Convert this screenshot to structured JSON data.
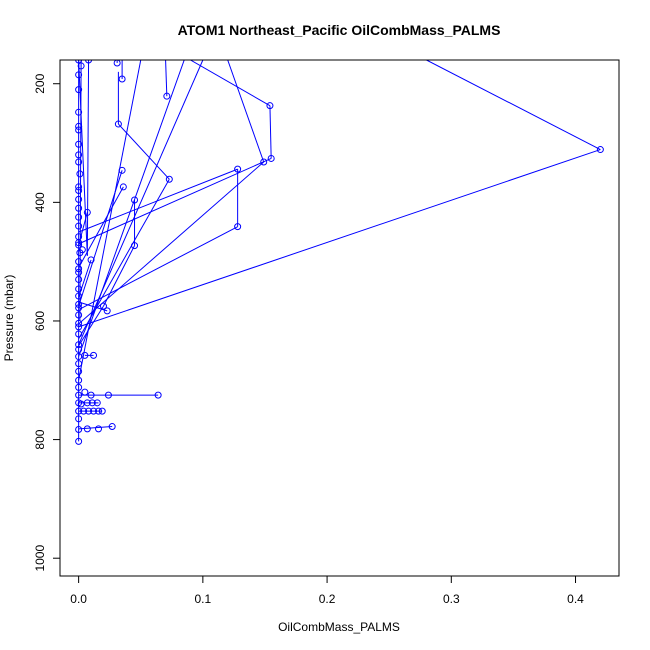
{
  "chart_data": {
    "type": "scatter",
    "title": "ATOM1 Northeast_Pacific OilCombMass_PALMS",
    "xlabel": "OilCombMass_PALMS",
    "ylabel": "Pressure (mbar)",
    "xlim": [
      -0.015,
      0.435
    ],
    "ylim": [
      1030,
      160
    ],
    "y_reversed": true,
    "xticks": [
      0.0,
      0.1,
      0.2,
      0.3,
      0.4
    ],
    "xtick_labels": [
      "0.0",
      "0.1",
      "0.2",
      "0.3",
      "0.4"
    ],
    "yticks": [
      200,
      400,
      600,
      800,
      1000
    ],
    "ytick_labels": [
      "200",
      "400",
      "600",
      "800",
      "1000"
    ],
    "color": "#0000ff",
    "grid": false,
    "points": [
      [
        0.0,
        160
      ],
      [
        0.002,
        170
      ],
      [
        0.008,
        160
      ],
      [
        0.0,
        185
      ],
      [
        0.0,
        210
      ],
      [
        0.0,
        248
      ],
      [
        0.0,
        272
      ],
      [
        0.0,
        278
      ],
      [
        0.0,
        302
      ],
      [
        0.0,
        320
      ],
      [
        0.0,
        332
      ],
      [
        0.001,
        352
      ],
      [
        0.0,
        374
      ],
      [
        0.0,
        380
      ],
      [
        0.0,
        395
      ],
      [
        0.0,
        410
      ],
      [
        0.0,
        425
      ],
      [
        0.0,
        440
      ],
      [
        0.0,
        458
      ],
      [
        0.0,
        468
      ],
      [
        0.0,
        472
      ],
      [
        0.003,
        480
      ],
      [
        0.001,
        485
      ],
      [
        0.0,
        500
      ],
      [
        0.0,
        512
      ],
      [
        0.0,
        518
      ],
      [
        0.0,
        530
      ],
      [
        0.0,
        546
      ],
      [
        0.0,
        558
      ],
      [
        0.0,
        572
      ],
      [
        0.0,
        578
      ],
      [
        0.0,
        590
      ],
      [
        0.0,
        604
      ],
      [
        0.0,
        610
      ],
      [
        0.0,
        622
      ],
      [
        0.0,
        640
      ],
      [
        0.0,
        648
      ],
      [
        0.0,
        660
      ],
      [
        0.0,
        672
      ],
      [
        0.0,
        685
      ],
      [
        0.0,
        700
      ],
      [
        0.0,
        712
      ],
      [
        0.0,
        725
      ],
      [
        0.0,
        738
      ],
      [
        0.0,
        752
      ],
      [
        0.0,
        765
      ],
      [
        0.0,
        783
      ],
      [
        0.0,
        803
      ],
      [
        0.031,
        165
      ],
      [
        0.035,
        192
      ],
      [
        0.071,
        221
      ],
      [
        0.154,
        237
      ],
      [
        0.032,
        268
      ],
      [
        0.42,
        311
      ],
      [
        0.155,
        326
      ],
      [
        0.149,
        332
      ],
      [
        0.128,
        344
      ],
      [
        0.035,
        346
      ],
      [
        0.073,
        361
      ],
      [
        0.036,
        374
      ],
      [
        0.045,
        396
      ],
      [
        0.007,
        417
      ],
      [
        0.128,
        441
      ],
      [
        0.045,
        473
      ],
      [
        0.01,
        497
      ],
      [
        0.02,
        575
      ],
      [
        0.023,
        583
      ],
      [
        0.005,
        658
      ],
      [
        0.012,
        658
      ],
      [
        0.005,
        720
      ],
      [
        0.01,
        725
      ],
      [
        0.024,
        725
      ],
      [
        0.064,
        725
      ],
      [
        0.015,
        738
      ],
      [
        0.011,
        738
      ],
      [
        0.007,
        738
      ],
      [
        0.002,
        740
      ],
      [
        0.016,
        752
      ],
      [
        0.019,
        752
      ],
      [
        0.012,
        752
      ],
      [
        0.008,
        752
      ],
      [
        0.004,
        752
      ],
      [
        0.027,
        778
      ],
      [
        0.016,
        782
      ],
      [
        0.007,
        782
      ]
    ],
    "segments": [
      [
        [
          0.0,
          160
        ],
        [
          0.007,
          490
        ]
      ],
      [
        [
          0.007,
          490
        ],
        [
          0.008,
          160
        ]
      ],
      [
        [
          0.002,
          160
        ],
        [
          0.001,
          600
        ]
      ],
      [
        [
          0.031,
          160
        ],
        [
          0.031,
          165
        ]
      ],
      [
        [
          0.035,
          160
        ],
        [
          0.035,
          192
        ]
      ],
      [
        [
          0.07,
          160
        ],
        [
          0.071,
          221
        ]
      ],
      [
        [
          0.09,
          160
        ],
        [
          0.154,
          237
        ]
      ],
      [
        [
          0.154,
          237
        ],
        [
          0.155,
          326
        ]
      ],
      [
        [
          0.155,
          326
        ],
        [
          0.0,
          470
        ]
      ],
      [
        [
          0.12,
          160
        ],
        [
          0.149,
          332
        ]
      ],
      [
        [
          0.149,
          332
        ],
        [
          0.0,
          605
        ]
      ],
      [
        [
          0.28,
          160
        ],
        [
          0.42,
          311
        ]
      ],
      [
        [
          0.42,
          311
        ],
        [
          0.0,
          610
        ]
      ],
      [
        [
          0.032,
          268
        ],
        [
          0.073,
          361
        ]
      ],
      [
        [
          0.032,
          268
        ],
        [
          0.032,
          180
        ]
      ],
      [
        [
          0.128,
          344
        ],
        [
          0.128,
          441
        ]
      ],
      [
        [
          0.128,
          344
        ],
        [
          0.0,
          450
        ]
      ],
      [
        [
          0.128,
          441
        ],
        [
          0.001,
          580
        ]
      ],
      [
        [
          0.035,
          346
        ],
        [
          0.0,
          575
        ]
      ],
      [
        [
          0.036,
          374
        ],
        [
          0.0,
          510
        ]
      ],
      [
        [
          0.045,
          396
        ],
        [
          0.045,
          473
        ]
      ],
      [
        [
          0.045,
          473
        ],
        [
          0.02,
          575
        ]
      ],
      [
        [
          0.073,
          361
        ],
        [
          0.0,
          630
        ]
      ],
      [
        [
          0.007,
          417
        ],
        [
          0.0,
          472
        ]
      ],
      [
        [
          0.01,
          497
        ],
        [
          0.0,
          560
        ]
      ],
      [
        [
          0.023,
          583
        ],
        [
          0.0,
          568
        ]
      ],
      [
        [
          0.02,
          575
        ],
        [
          0.0,
          642
        ]
      ],
      [
        [
          0.1,
          160
        ],
        [
          0.0,
          640
        ]
      ],
      [
        [
          0.085,
          160
        ],
        [
          0.0,
          660
        ]
      ],
      [
        [
          0.05,
          160
        ],
        [
          0.0,
          700
        ]
      ],
      [
        [
          0.0,
          725
        ],
        [
          0.064,
          725
        ]
      ],
      [
        [
          0.005,
          658
        ],
        [
          0.012,
          658
        ]
      ],
      [
        [
          0.0,
          752
        ],
        [
          0.019,
          752
        ]
      ],
      [
        [
          0.0,
          738
        ],
        [
          0.016,
          738
        ]
      ],
      [
        [
          0.0,
          782
        ],
        [
          0.027,
          778
        ]
      ],
      [
        [
          0.0,
          160
        ],
        [
          0.0,
          803
        ]
      ]
    ]
  }
}
